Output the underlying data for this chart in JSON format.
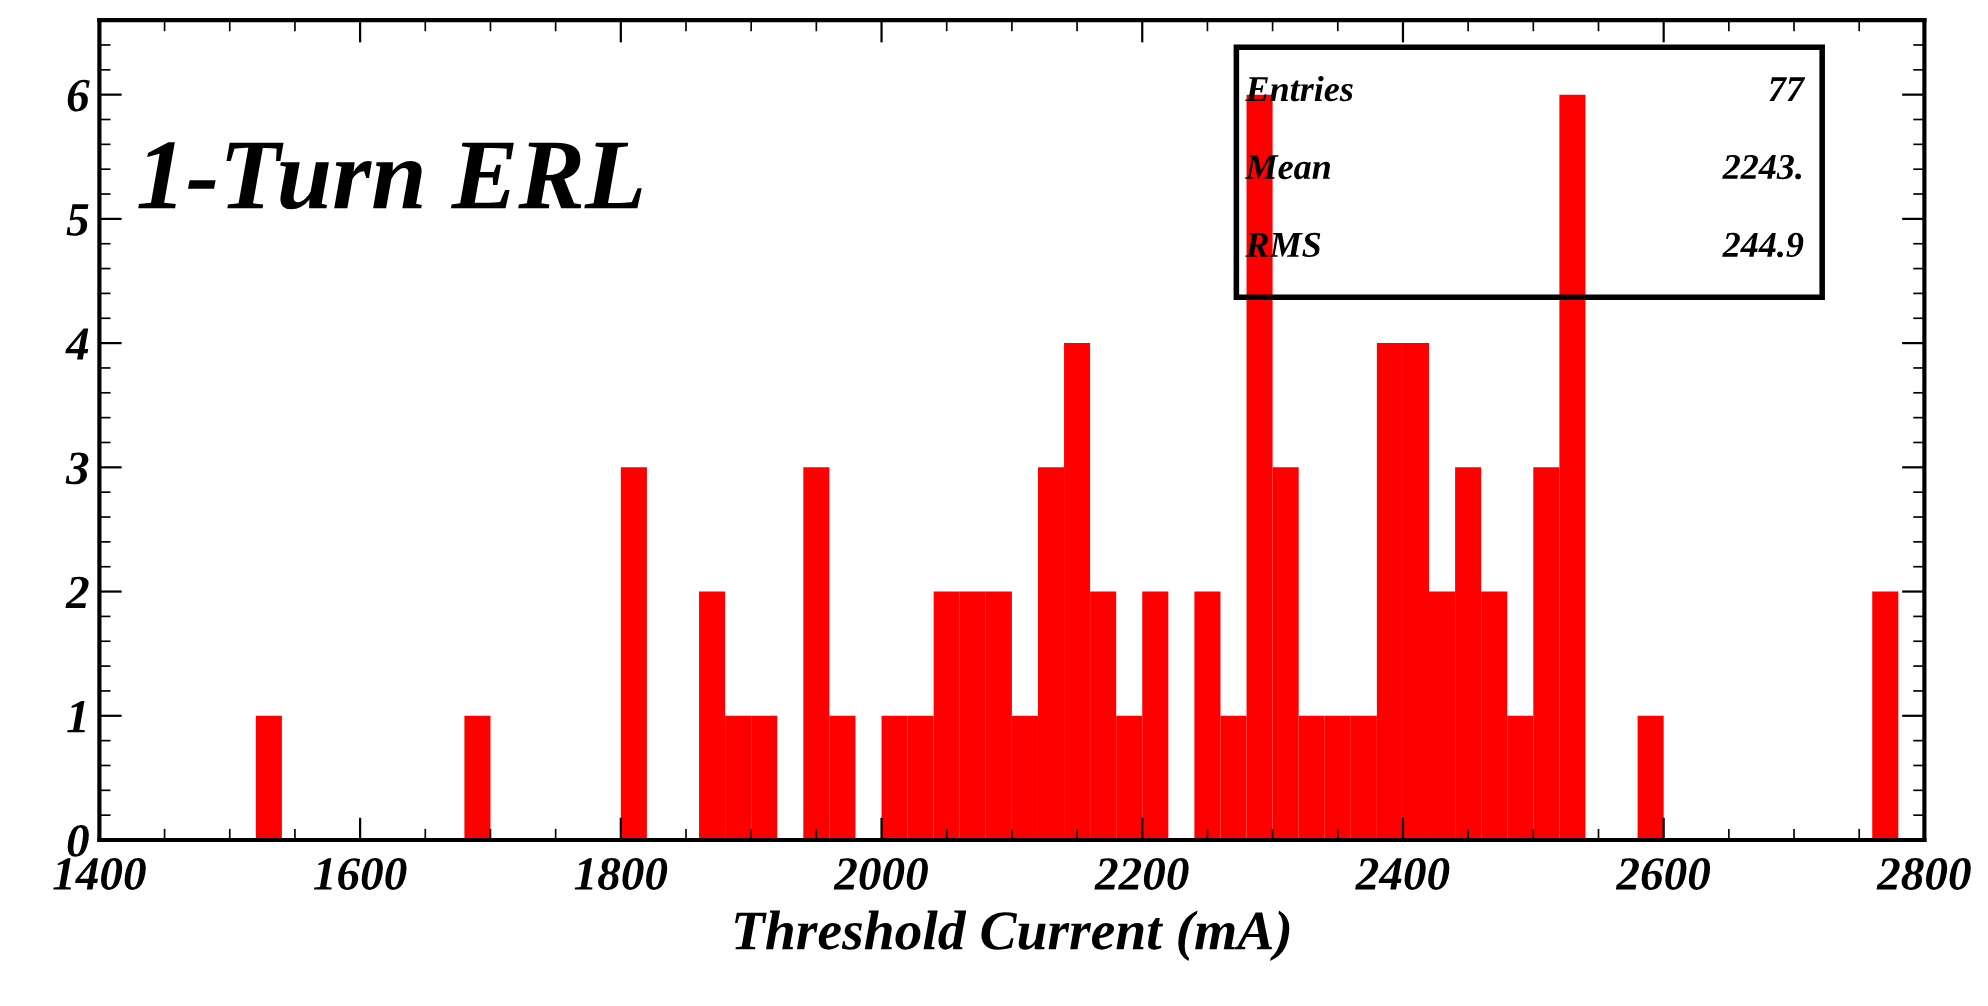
{
  "chart_data": {
    "type": "histogram",
    "title": "1-Turn ERL",
    "xlabel": "Threshold Current (mA)",
    "bins": [
      1400,
      1420,
      1440,
      1460,
      1480,
      1500,
      1520,
      1540,
      1560,
      1580,
      1600,
      1620,
      1640,
      1660,
      1680,
      1700,
      1720,
      1740,
      1760,
      1780,
      1800,
      1820,
      1840,
      1860,
      1880,
      1900,
      1920,
      1940,
      1960,
      1980,
      2000,
      2020,
      2040,
      2060,
      2080,
      2100,
      2120,
      2140,
      2160,
      2180,
      2200,
      2220,
      2240,
      2260,
      2280,
      2300,
      2320,
      2340,
      2360,
      2380,
      2400,
      2420,
      2440,
      2460,
      2480,
      2500,
      2520,
      2540,
      2560,
      2580,
      2600,
      2620,
      2640,
      2660,
      2680,
      2700,
      2720,
      2740,
      2760,
      2780,
      2800
    ],
    "values": [
      0,
      0,
      0,
      0,
      0,
      0,
      1,
      0,
      0,
      0,
      0,
      0,
      0,
      0,
      1,
      0,
      0,
      0,
      0,
      0,
      3,
      0,
      0,
      2,
      1,
      1,
      0,
      3,
      1,
      0,
      1,
      1,
      2,
      2,
      2,
      1,
      3,
      4,
      2,
      1,
      2,
      0,
      2,
      1,
      6,
      3,
      1,
      1,
      1,
      4,
      4,
      2,
      3,
      2,
      1,
      3,
      6,
      0,
      0,
      1,
      0,
      0,
      0,
      0,
      0,
      0,
      0,
      0,
      2,
      0
    ],
    "color": "#ff0000",
    "xlim": [
      1400,
      2800
    ],
    "ylim": [
      0,
      6.6
    ],
    "xticks": [
      1400,
      1600,
      1800,
      2000,
      2200,
      2400,
      2600,
      2800
    ],
    "yticks": [
      0,
      1,
      2,
      3,
      4,
      5,
      6
    ],
    "grid": false,
    "legend": false,
    "annotations": [
      "Entries",
      "77",
      "Mean",
      "2243.",
      "RMS",
      "244.9"
    ]
  }
}
